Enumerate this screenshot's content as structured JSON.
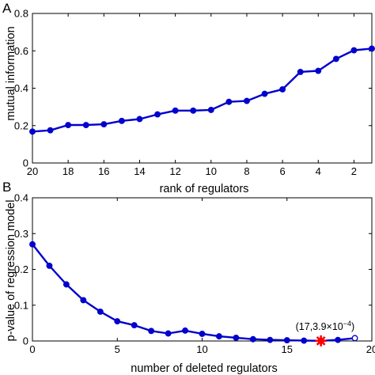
{
  "figure": {
    "panel_a_label": "A",
    "panel_b_label": "B"
  },
  "colors": {
    "series": "#0000cc",
    "highlight": "#ff0000",
    "axis": "#000000"
  },
  "chart_data": [
    {
      "panel": "A",
      "type": "line",
      "title": "",
      "xlabel": "rank of regulators",
      "ylabel": "mutual information",
      "x_reversed": true,
      "xlim": [
        20,
        1
      ],
      "ylim": [
        0,
        0.8
      ],
      "xticks": [
        20,
        18,
        16,
        14,
        12,
        10,
        8,
        6,
        4,
        2
      ],
      "xtick_labels": [
        "20",
        "18",
        "16",
        "14",
        "12",
        "10",
        "8",
        "6",
        "4",
        "2"
      ],
      "yticks": [
        0,
        0.2,
        0.4,
        0.6,
        0.8
      ],
      "ytick_labels": [
        "0",
        "0.2",
        "0.4",
        "0.6",
        "0.8"
      ],
      "grid": false,
      "series": [
        {
          "x": [
            20,
            19,
            18,
            17,
            16,
            15,
            14,
            13,
            12,
            11,
            10,
            9,
            8,
            7,
            6,
            5,
            4,
            3,
            2,
            1
          ],
          "y": [
            0.168,
            0.175,
            0.203,
            0.203,
            0.207,
            0.225,
            0.235,
            0.26,
            0.28,
            0.28,
            0.284,
            0.327,
            0.332,
            0.37,
            0.394,
            0.487,
            0.493,
            0.557,
            0.603,
            0.612
          ]
        }
      ]
    },
    {
      "panel": "B",
      "type": "line",
      "title": "",
      "xlabel": "number of deleted regulators",
      "ylabel": "p-value of regression model",
      "xlim": [
        0,
        20
      ],
      "ylim": [
        0,
        0.4
      ],
      "xticks": [
        0,
        5,
        10,
        15,
        20
      ],
      "xtick_labels": [
        "0",
        "5",
        "10",
        "15",
        "20"
      ],
      "yticks": [
        0,
        0.1,
        0.2,
        0.3,
        0.4
      ],
      "ytick_labels": [
        "0",
        "0.1",
        "0.2",
        "0.3",
        "0.4"
      ],
      "grid": false,
      "series": [
        {
          "x": [
            0,
            1,
            2,
            3,
            4,
            5,
            6,
            7,
            8,
            9,
            10,
            11,
            12,
            13,
            14,
            15,
            16,
            17,
            18,
            19
          ],
          "y": [
            0.27,
            0.21,
            0.158,
            0.114,
            0.082,
            0.055,
            0.044,
            0.028,
            0.021,
            0.029,
            0.02,
            0.013,
            0.009,
            0.005,
            0.003,
            0.002,
            0.001,
            0.00039,
            0.003,
            0.008
          ]
        }
      ],
      "annotation": {
        "point": [
          17,
          0.00039
        ],
        "marker": "star",
        "text_prefix": "(17,3.9×10",
        "text_exponent": "−4",
        "text_suffix": ")"
      }
    }
  ]
}
